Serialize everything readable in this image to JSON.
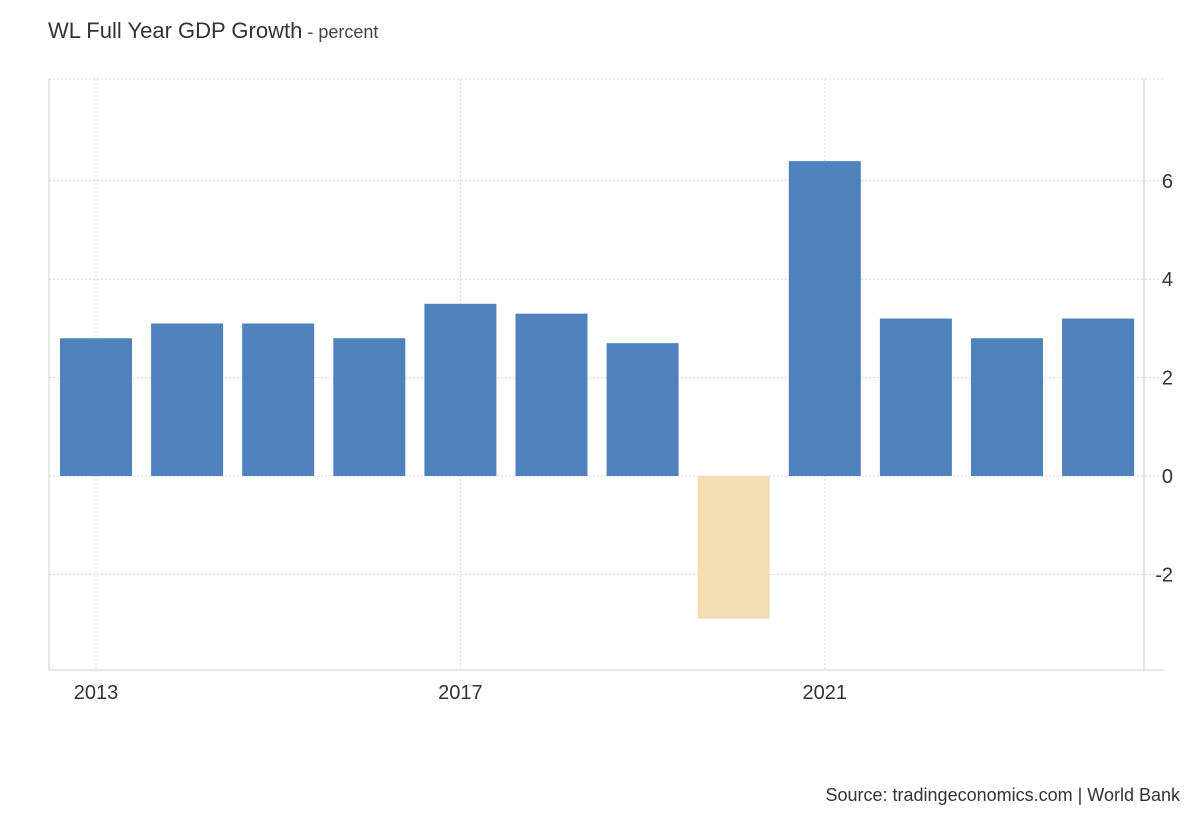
{
  "title": {
    "main": "WL Full Year GDP Growth",
    "separator": " - ",
    "unit": "percent"
  },
  "source": "Source: tradingeconomics.com | World Bank",
  "chart_data": {
    "type": "bar",
    "title": "WL Full Year GDP Growth",
    "subtitle": "percent",
    "x": [
      2013,
      2014,
      2015,
      2016,
      2017,
      2018,
      2019,
      2020,
      2021,
      2022,
      2023,
      2024
    ],
    "values": [
      2.8,
      3.1,
      3.1,
      2.8,
      3.5,
      3.3,
      2.7,
      -2.9,
      6.4,
      3.2,
      2.8,
      3.2
    ],
    "x_tick_labels": [
      "2013",
      "2017",
      "2021"
    ],
    "y_ticks": [
      -2,
      0,
      2,
      4,
      6
    ],
    "ylim": [
      -4,
      8
    ],
    "y_axis_position": "right",
    "grid": true,
    "legend": "none",
    "colors": {
      "positive": "#4f81bd",
      "negative": "#f3deb3",
      "grid": "#d9d9d9",
      "axis": "#cccccc",
      "tick_label": "#333333"
    }
  }
}
